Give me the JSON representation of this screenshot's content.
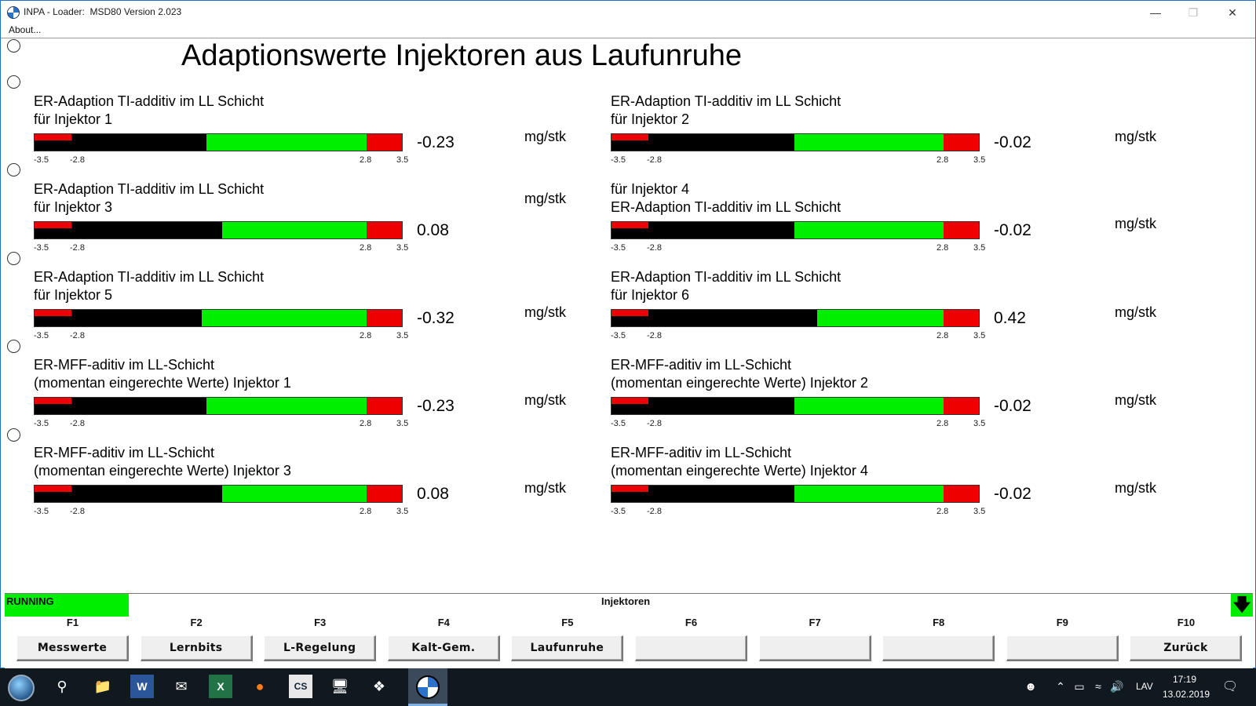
{
  "window": {
    "title": "INPA - Loader:  MSD80 Version 2.023",
    "menu_about": "About..."
  },
  "page": {
    "title": "Adaptionswerte Injektoren aus Laufunruhe"
  },
  "scale": {
    "min": "-3.5",
    "low": "-2.8",
    "high": "2.8",
    "max": "3.5"
  },
  "gauges": [
    {
      "line1": "ER-Adaption TI-additiv im LL Schicht",
      "line2": "für Injektor 1",
      "value": "-0.23",
      "value_num": -0.23,
      "unit": "mg/stk"
    },
    {
      "line1": "ER-Adaption TI-additiv im LL Schicht",
      "line2": "für Injektor 2",
      "value": "-0.02",
      "value_num": -0.02,
      "unit": "mg/stk"
    },
    {
      "line1": "ER-Adaption TI-additiv im LL Schicht",
      "line2": "für Injektor 3",
      "value": "0.08",
      "value_num": 0.08,
      "unit": "mg/stk"
    },
    {
      "line1": "für Injektor 4",
      "line2": "ER-Adaption TI-additiv im LL Schicht",
      "value": "-0.02",
      "value_num": -0.02,
      "unit": "mg/stk"
    },
    {
      "line1": "ER-Adaption TI-additiv im LL Schicht",
      "line2": "für Injektor 5",
      "value": "-0.32",
      "value_num": -0.32,
      "unit": "mg/stk"
    },
    {
      "line1": "ER-Adaption TI-additiv im LL Schicht",
      "line2": "für Injektor 6",
      "value": "0.42",
      "value_num": 0.42,
      "unit": "mg/stk"
    },
    {
      "line1": "ER-MFF-aditiv im LL-Schicht",
      "line2": "(momentan eingerechte Werte) Injektor 1",
      "value": "-0.23",
      "value_num": -0.23,
      "unit": "mg/stk"
    },
    {
      "line1": "ER-MFF-aditiv im LL-Schicht",
      "line2": "(momentan eingerechte Werte) Injektor 2",
      "value": "-0.02",
      "value_num": -0.02,
      "unit": "mg/stk"
    },
    {
      "line1": "ER-MFF-aditiv im LL-Schicht",
      "line2": "(momentan eingerechte Werte) Injektor 3",
      "value": "0.08",
      "value_num": 0.08,
      "unit": "mg/stk"
    },
    {
      "line1": "ER-MFF-aditiv im LL-Schicht",
      "line2": "(momentan eingerechte Werte) Injektor 4",
      "value": "-0.02",
      "value_num": -0.02,
      "unit": "mg/stk"
    }
  ],
  "status": {
    "state": "RUNNING",
    "screen": "Injektoren",
    "state_color": "#00ee00"
  },
  "fkeys": [
    {
      "key": "F1",
      "label": "Messwerte"
    },
    {
      "key": "F2",
      "label": "Lernbits"
    },
    {
      "key": "F3",
      "label": "L-Regelung"
    },
    {
      "key": "F4",
      "label": "Kalt-Gem."
    },
    {
      "key": "F5",
      "label": "Laufunruhe"
    },
    {
      "key": "F6",
      "label": ""
    },
    {
      "key": "F7",
      "label": ""
    },
    {
      "key": "F8",
      "label": ""
    },
    {
      "key": "F9",
      "label": ""
    },
    {
      "key": "F10",
      "label": "Zurück"
    }
  ],
  "taskbar": {
    "language": "LAV",
    "time": "17:19",
    "date": "13.02.2019"
  }
}
